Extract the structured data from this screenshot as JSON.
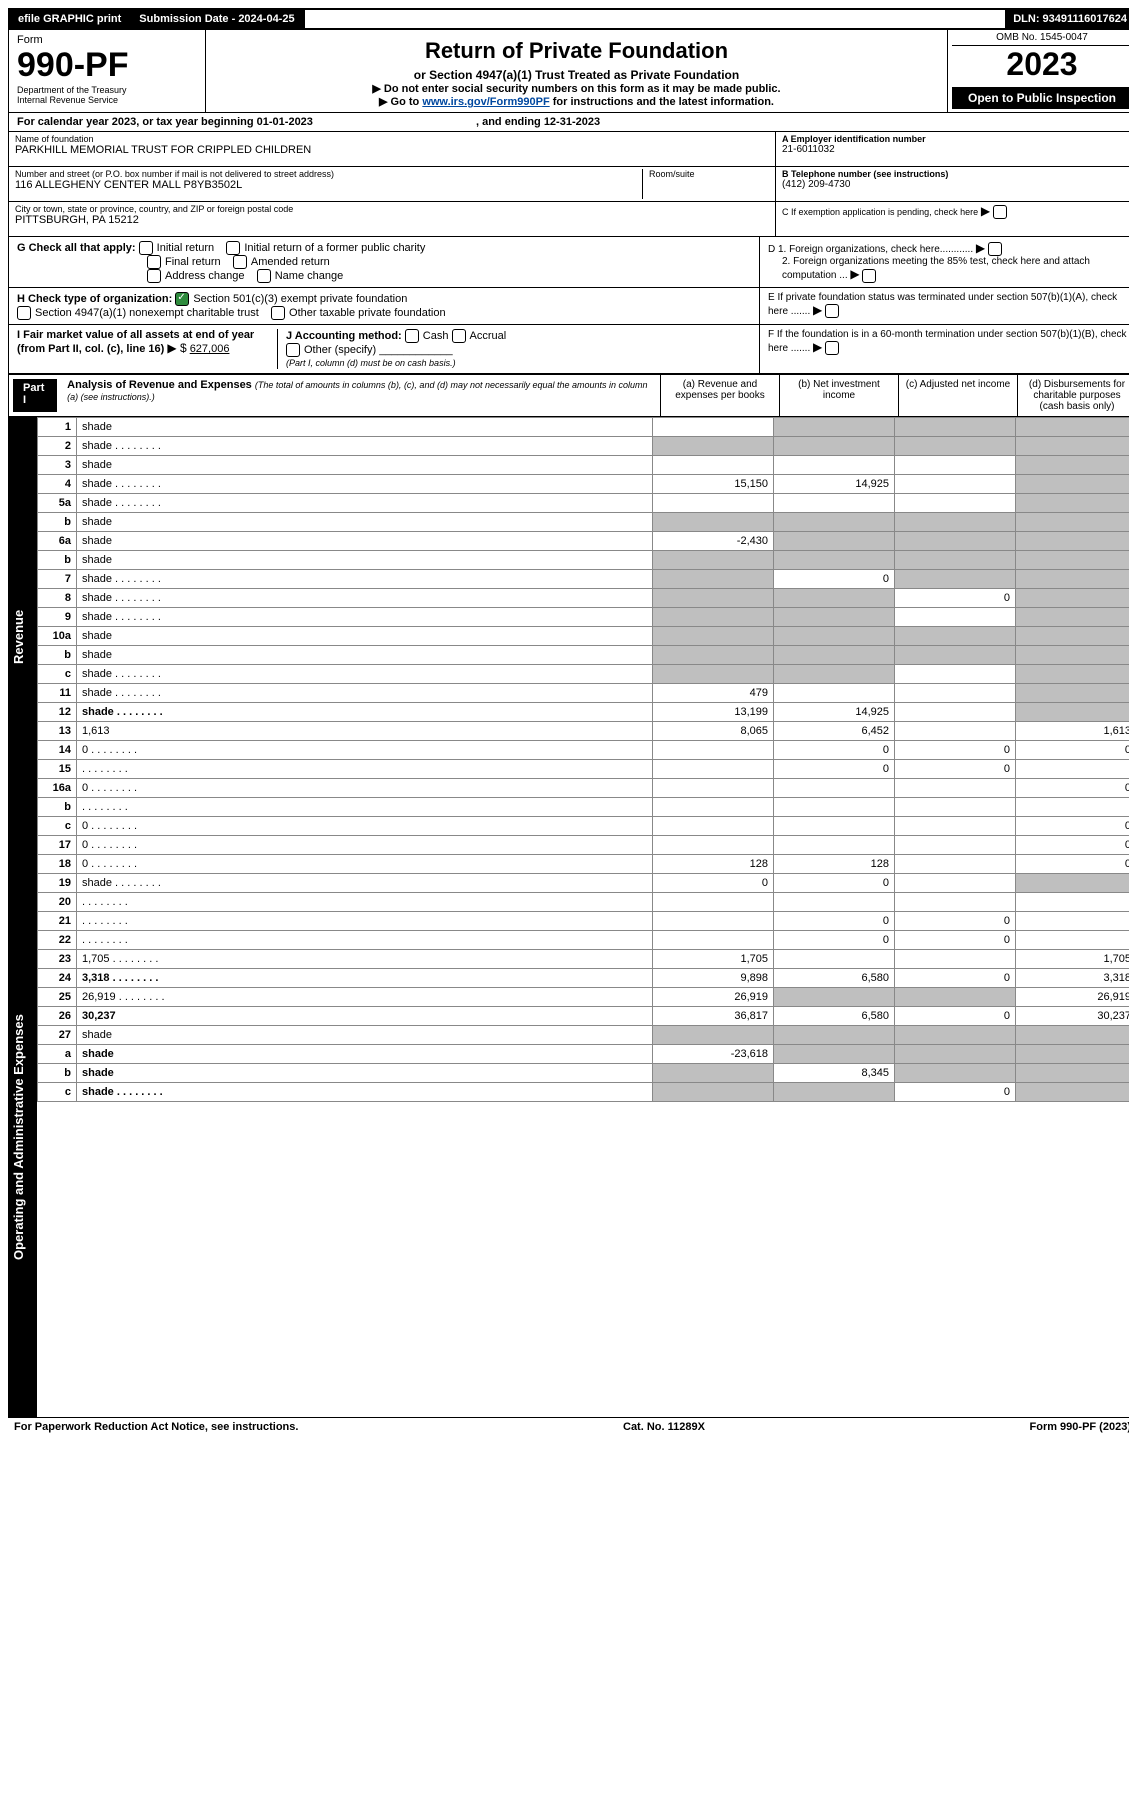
{
  "topbar": {
    "efile": "efile GRAPHIC print",
    "submission_label": "Submission Date - 2024-04-25",
    "dln": "DLN: 93491116017624"
  },
  "header": {
    "form_label": "Form",
    "form_number": "990-PF",
    "dept": "Department of the Treasury",
    "irs": "Internal Revenue Service",
    "title": "Return of Private Foundation",
    "subtitle": "or Section 4947(a)(1) Trust Treated as Private Foundation",
    "note1": "▶ Do not enter social security numbers on this form as it may be made public.",
    "note2_pre": "▶ Go to ",
    "note2_link": "www.irs.gov/Form990PF",
    "note2_post": " for instructions and the latest information.",
    "omb": "OMB No. 1545-0047",
    "year": "2023",
    "inspect": "Open to Public Inspection"
  },
  "calendar": {
    "line": "For calendar year 2023, or tax year beginning 01-01-2023",
    "ending_label": ", and ending 12-31-2023"
  },
  "entity": {
    "name_label": "Name of foundation",
    "name": "PARKHILL MEMORIAL TRUST FOR CRIPPLED CHILDREN",
    "addr_label": "Number and street (or P.O. box number if mail is not delivered to street address)",
    "addr": "116 ALLEGHENY CENTER MALL P8YB3502L",
    "room_label": "Room/suite",
    "city_label": "City or town, state or province, country, and ZIP or foreign postal code",
    "city": "PITTSBURGH, PA  15212",
    "ein_label": "A Employer identification number",
    "ein": "21-6011032",
    "phone_label": "B Telephone number (see instructions)",
    "phone": "(412) 209-4730",
    "c_label": "C If exemption application is pending, check here",
    "d1_label": "D 1. Foreign organizations, check here............",
    "d2_label": "2. Foreign organizations meeting the 85% test, check here and attach computation ...",
    "e_label": "E If private foundation status was terminated under section 507(b)(1)(A), check here .......",
    "f_label": "F If the foundation is in a 60-month termination under section 507(b)(1)(B), check here .......",
    "g_label": "G Check all that apply:",
    "g_opts": [
      "Initial return",
      "Initial return of a former public charity",
      "Final return",
      "Amended return",
      "Address change",
      "Name change"
    ],
    "h_label": "H Check type of organization:",
    "h_opts": [
      "Section 501(c)(3) exempt private foundation",
      "Section 4947(a)(1) nonexempt charitable trust",
      "Other taxable private foundation"
    ],
    "i_label": "I Fair market value of all assets at end of year (from Part II, col. (c), line 16)",
    "i_value": "627,006",
    "j_label": "J Accounting method:",
    "j_opts": [
      "Cash",
      "Accrual",
      "Other (specify)"
    ],
    "j_note": "(Part I, column (d) must be on cash basis.)"
  },
  "part1": {
    "label": "Part I",
    "title": "Analysis of Revenue and Expenses",
    "title_note": "(The total of amounts in columns (b), (c), and (d) may not necessarily equal the amounts in column (a) (see instructions).)",
    "col_a": "(a) Revenue and expenses per books",
    "col_b": "(b) Net investment income",
    "col_c": "(c) Adjusted net income",
    "col_d": "(d) Disbursements for charitable purposes (cash basis only)"
  },
  "side": {
    "revenue": "Revenue",
    "opex": "Operating and Administrative Expenses"
  },
  "lines": [
    {
      "n": "1",
      "d": "shade",
      "a": "",
      "b": "shade",
      "c": "shade"
    },
    {
      "n": "2",
      "d": "shade",
      "a": "shade",
      "b": "shade",
      "c": "shade",
      "dotted": true
    },
    {
      "n": "3",
      "d": "shade",
      "a": "",
      "b": "",
      "c": ""
    },
    {
      "n": "4",
      "d": "shade",
      "a": "15,150",
      "b": "14,925",
      "c": "",
      "dotted": true
    },
    {
      "n": "5a",
      "d": "shade",
      "a": "",
      "b": "",
      "c": "",
      "dotted": true
    },
    {
      "n": "b",
      "d": "shade",
      "a": "shade",
      "b": "shade",
      "c": "shade"
    },
    {
      "n": "6a",
      "d": "shade",
      "a": "-2,430",
      "b": "shade",
      "c": "shade"
    },
    {
      "n": "b",
      "d": "shade",
      "a": "shade",
      "b": "shade",
      "c": "shade"
    },
    {
      "n": "7",
      "d": "shade",
      "a": "shade",
      "b": "0",
      "c": "shade",
      "dotted": true
    },
    {
      "n": "8",
      "d": "shade",
      "a": "shade",
      "b": "shade",
      "c": "0",
      "dotted": true
    },
    {
      "n": "9",
      "d": "shade",
      "a": "shade",
      "b": "shade",
      "c": "",
      "dotted": true
    },
    {
      "n": "10a",
      "d": "shade",
      "a": "shade",
      "b": "shade",
      "c": "shade"
    },
    {
      "n": "b",
      "d": "shade",
      "a": "shade",
      "b": "shade",
      "c": "shade"
    },
    {
      "n": "c",
      "d": "shade",
      "a": "shade",
      "b": "shade",
      "c": "",
      "dotted": true
    },
    {
      "n": "11",
      "d": "shade",
      "a": "479",
      "b": "",
      "c": "",
      "dotted": true
    },
    {
      "n": "12",
      "d": "shade",
      "a": "13,199",
      "b": "14,925",
      "c": "",
      "bold": true,
      "dotted": true
    },
    {
      "n": "13",
      "d": "1,613",
      "a": "8,065",
      "b": "6,452",
      "c": ""
    },
    {
      "n": "14",
      "d": "0",
      "a": "",
      "b": "0",
      "c": "0",
      "dotted": true
    },
    {
      "n": "15",
      "d": "",
      "a": "",
      "b": "0",
      "c": "0",
      "dotted": true
    },
    {
      "n": "16a",
      "d": "0",
      "a": "",
      "b": "",
      "c": "",
      "dotted": true
    },
    {
      "n": "b",
      "d": "",
      "a": "",
      "b": "",
      "c": "",
      "dotted": true
    },
    {
      "n": "c",
      "d": "0",
      "a": "",
      "b": "",
      "c": "",
      "dotted": true
    },
    {
      "n": "17",
      "d": "0",
      "a": "",
      "b": "",
      "c": "",
      "dotted": true
    },
    {
      "n": "18",
      "d": "0",
      "a": "128",
      "b": "128",
      "c": "",
      "dotted": true
    },
    {
      "n": "19",
      "d": "shade",
      "a": "0",
      "b": "0",
      "c": "",
      "dotted": true
    },
    {
      "n": "20",
      "d": "",
      "a": "",
      "b": "",
      "c": "",
      "dotted": true
    },
    {
      "n": "21",
      "d": "",
      "a": "",
      "b": "0",
      "c": "0",
      "dotted": true
    },
    {
      "n": "22",
      "d": "",
      "a": "",
      "b": "0",
      "c": "0",
      "dotted": true
    },
    {
      "n": "23",
      "d": "1,705",
      "a": "1,705",
      "b": "",
      "c": "",
      "dotted": true
    },
    {
      "n": "24",
      "d": "3,318",
      "a": "9,898",
      "b": "6,580",
      "c": "0",
      "bold": true,
      "dotted": true
    },
    {
      "n": "25",
      "d": "26,919",
      "a": "26,919",
      "b": "shade",
      "c": "shade",
      "dotted": true
    },
    {
      "n": "26",
      "d": "30,237",
      "a": "36,817",
      "b": "6,580",
      "c": "0",
      "bold": true
    },
    {
      "n": "27",
      "d": "shade",
      "a": "shade",
      "b": "shade",
      "c": "shade"
    },
    {
      "n": "a",
      "d": "shade",
      "a": "-23,618",
      "b": "shade",
      "c": "shade",
      "bold": true
    },
    {
      "n": "b",
      "d": "shade",
      "a": "shade",
      "b": "8,345",
      "c": "shade",
      "bold": true
    },
    {
      "n": "c",
      "d": "shade",
      "a": "shade",
      "b": "shade",
      "c": "0",
      "bold": true,
      "dotted": true
    }
  ],
  "footer": {
    "left": "For Paperwork Reduction Act Notice, see instructions.",
    "center": "Cat. No. 11289X",
    "right": "Form 990-PF (2023)"
  }
}
